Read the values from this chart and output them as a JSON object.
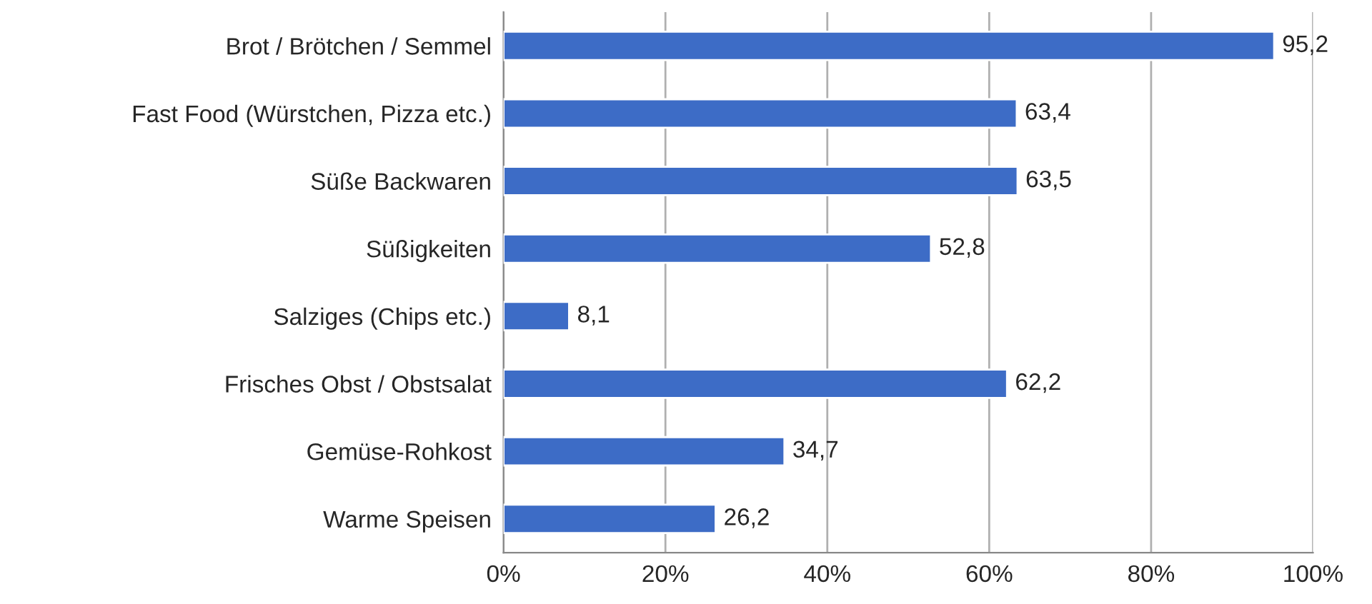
{
  "chart_data": {
    "type": "bar",
    "orientation": "horizontal",
    "categories": [
      "Brot / Brötchen / Semmel",
      "Fast Food (Würstchen, Pizza etc.)",
      "Süße Backwaren",
      "Süßigkeiten",
      "Salziges (Chips etc.)",
      "Frisches Obst / Obstsalat",
      "Gemüse-Rohkost",
      "Warme Speisen"
    ],
    "values": [
      95.2,
      63.4,
      63.5,
      52.8,
      8.1,
      62.2,
      34.7,
      26.2
    ],
    "value_labels": [
      "95,2",
      "63,4",
      "63,5",
      "52,8",
      "8,1",
      "62,2",
      "34,7",
      "26,2"
    ],
    "color": "#3d6cc6",
    "xlim": [
      0,
      100
    ],
    "xticks": [
      {
        "value": 0,
        "label": "0%"
      },
      {
        "value": 20,
        "label": "20%"
      },
      {
        "value": 40,
        "label": "40%"
      },
      {
        "value": 60,
        "label": "60%"
      },
      {
        "value": 80,
        "label": "80%"
      },
      {
        "value": 100,
        "label": "100%"
      }
    ],
    "grid": "x"
  }
}
